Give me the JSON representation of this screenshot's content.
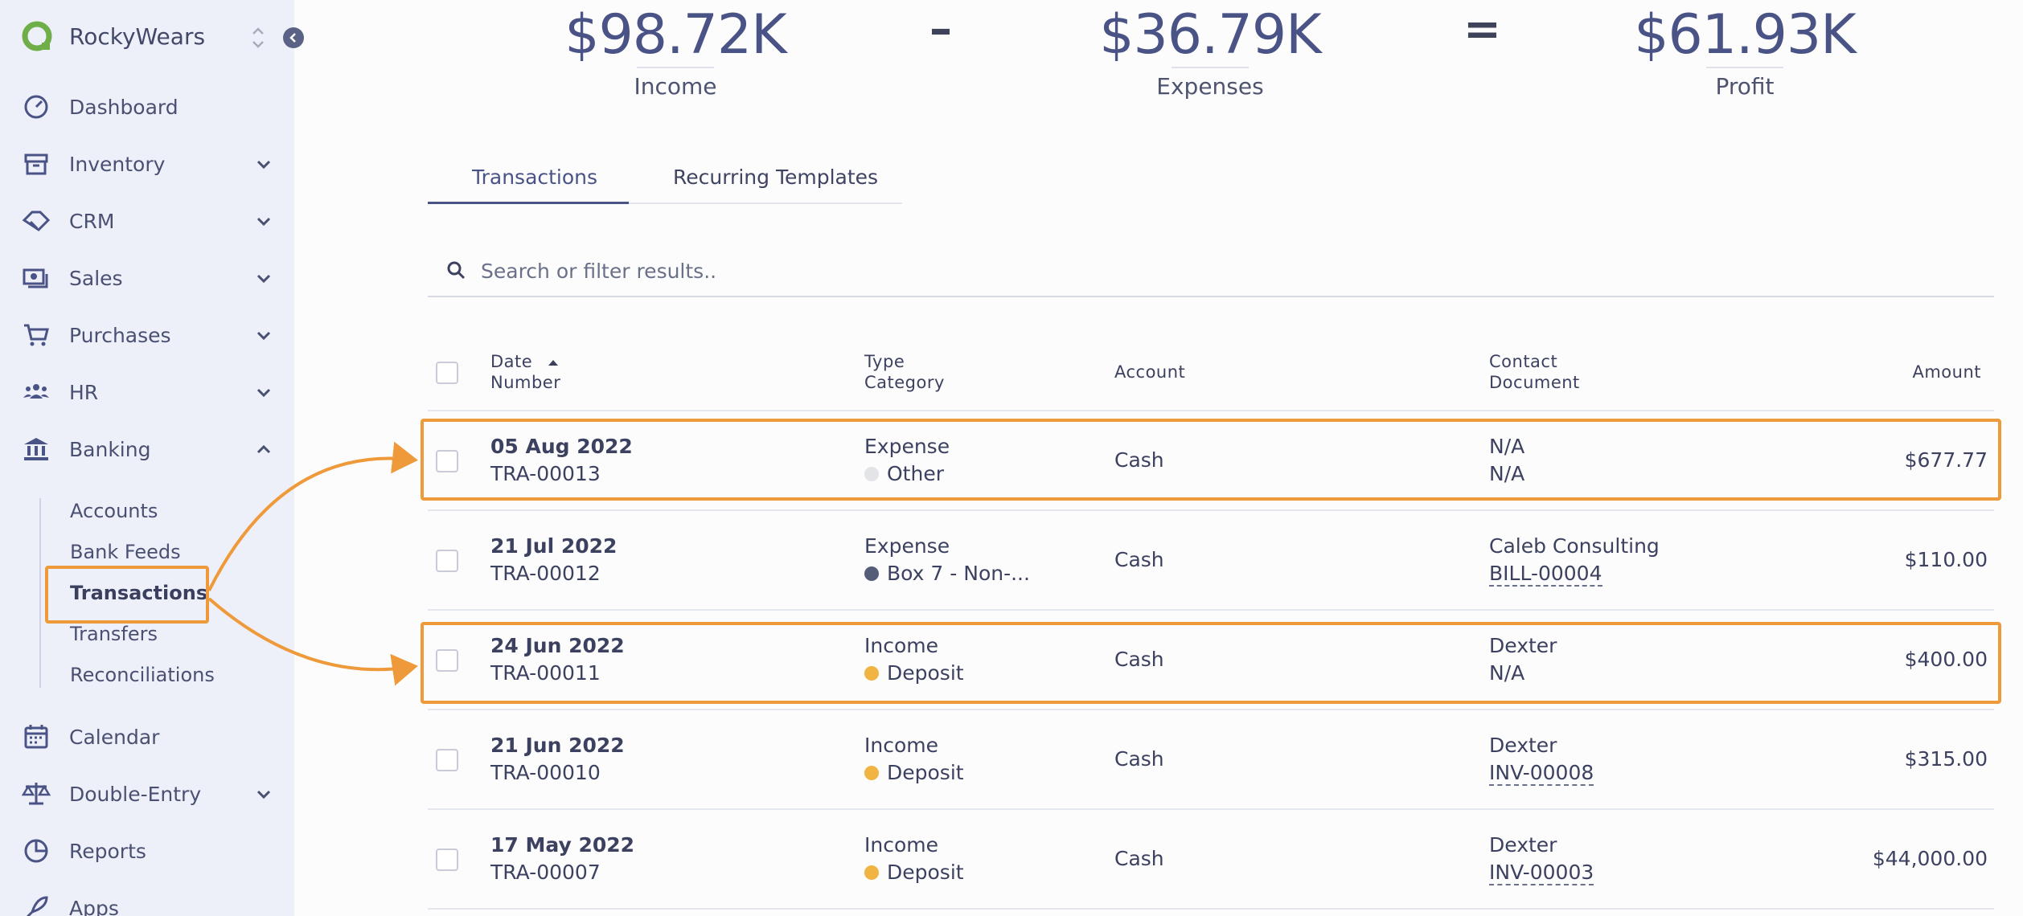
{
  "app": {
    "name": "RockyWears"
  },
  "sidebar": {
    "items": [
      {
        "label": "Dashboard",
        "icon": "gauge-icon",
        "expandable": false
      },
      {
        "label": "Inventory",
        "icon": "archive-box-icon",
        "expandable": true
      },
      {
        "label": "CRM",
        "icon": "handshake-icon",
        "expandable": true
      },
      {
        "label": "Sales",
        "icon": "money-icon",
        "expandable": true
      },
      {
        "label": "Purchases",
        "icon": "cart-icon",
        "expandable": true
      },
      {
        "label": "HR",
        "icon": "people-icon",
        "expandable": true
      },
      {
        "label": "Banking",
        "icon": "bank-icon",
        "expandable": true,
        "expanded": true
      },
      {
        "label": "Calendar",
        "icon": "calendar-icon",
        "expandable": false
      },
      {
        "label": "Double-Entry",
        "icon": "scale-icon",
        "expandable": true
      },
      {
        "label": "Reports",
        "icon": "pie-chart-icon",
        "expandable": false
      },
      {
        "label": "Apps",
        "icon": "rocket-icon",
        "expandable": false
      }
    ],
    "banking_sub": [
      "Accounts",
      "Bank Feeds",
      "Transactions",
      "Transfers",
      "Reconciliations"
    ],
    "active_sub": "Transactions"
  },
  "summary": {
    "income": {
      "value": "$98.72K",
      "label": "Income"
    },
    "minus": "–",
    "expenses": {
      "value": "$36.79K",
      "label": "Expenses"
    },
    "equals": "=",
    "profit": {
      "value": "$61.93K",
      "label": "Profit"
    }
  },
  "tabs": [
    {
      "label": "Transactions",
      "active": true
    },
    {
      "label": "Recurring Templates",
      "active": false
    }
  ],
  "search": {
    "placeholder": "Search or filter results.."
  },
  "table": {
    "headers": {
      "date": "Date",
      "number": "Number",
      "type": "Type",
      "category": "Category",
      "account": "Account",
      "contact": "Contact",
      "document": "Document",
      "amount": "Amount"
    },
    "rows": [
      {
        "date": "05 Aug 2022",
        "number": "TRA-00013",
        "type": "Expense",
        "category": "Other",
        "category_color": "#e3e4e8",
        "account": "Cash",
        "contact": "N/A",
        "document": "N/A",
        "document_link": false,
        "amount": "$677.77"
      },
      {
        "date": "21 Jul 2022",
        "number": "TRA-00012",
        "type": "Expense",
        "category": "Box 7 - Non-...",
        "category_color": "#545c78",
        "account": "Cash",
        "contact": "Caleb Consulting",
        "document": "BILL-00004",
        "document_link": true,
        "amount": "$110.00"
      },
      {
        "date": "24 Jun 2022",
        "number": "TRA-00011",
        "type": "Income",
        "category": "Deposit",
        "category_color": "#f0b443",
        "account": "Cash",
        "contact": "Dexter",
        "document": "N/A",
        "document_link": false,
        "amount": "$400.00"
      },
      {
        "date": "21 Jun 2022",
        "number": "TRA-00010",
        "type": "Income",
        "category": "Deposit",
        "category_color": "#f0b443",
        "account": "Cash",
        "contact": "Dexter",
        "document": "INV-00008",
        "document_link": true,
        "amount": "$315.00"
      },
      {
        "date": "17 May 2022",
        "number": "TRA-00007",
        "type": "Income",
        "category": "Deposit",
        "category_color": "#f0b443",
        "account": "Cash",
        "contact": "Dexter",
        "document": "INV-00003",
        "document_link": true,
        "amount": "$44,000.00"
      }
    ]
  },
  "colors": {
    "accent": "#4a5385",
    "highlight": "#ef9a3a",
    "sidebar_bg": "#eef0f9"
  }
}
